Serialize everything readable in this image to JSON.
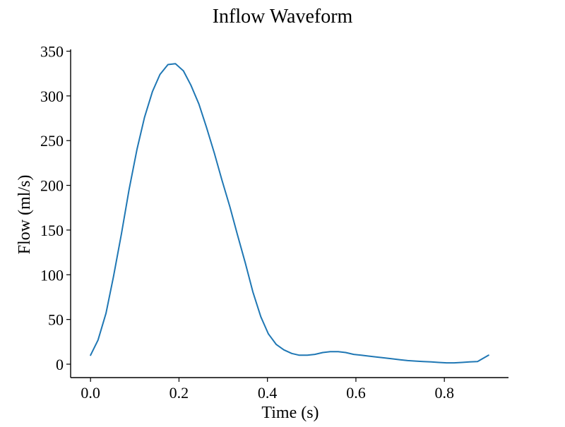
{
  "chart_data": {
    "type": "line",
    "title": "Inflow Waveform",
    "xlabel": "Time (s)",
    "ylabel": "Flow (ml/s)",
    "xlim": [
      -0.045,
      0.945
    ],
    "ylim": [
      -15,
      352
    ],
    "xticks": [
      0.0,
      0.2,
      0.4,
      0.6,
      0.8
    ],
    "xtick_labels": [
      "0.0",
      "0.2",
      "0.4",
      "0.6",
      "0.8"
    ],
    "yticks": [
      0,
      50,
      100,
      150,
      200,
      250,
      300,
      350
    ],
    "ytick_labels": [
      "0",
      "50",
      "100",
      "150",
      "200",
      "250",
      "300",
      "350"
    ],
    "grid": false,
    "legend": "none",
    "series": [
      {
        "color": "#1f77b4",
        "x": [
          0.0,
          0.017,
          0.035,
          0.052,
          0.07,
          0.087,
          0.105,
          0.122,
          0.14,
          0.157,
          0.175,
          0.192,
          0.21,
          0.227,
          0.245,
          0.262,
          0.28,
          0.297,
          0.315,
          0.332,
          0.35,
          0.367,
          0.385,
          0.402,
          0.42,
          0.437,
          0.455,
          0.472,
          0.49,
          0.507,
          0.525,
          0.542,
          0.56,
          0.577,
          0.595,
          0.612,
          0.63,
          0.647,
          0.665,
          0.682,
          0.7,
          0.717,
          0.735,
          0.752,
          0.77,
          0.787,
          0.805,
          0.822,
          0.84,
          0.857,
          0.875,
          0.9
        ],
        "y": [
          10,
          27,
          57,
          98,
          146,
          195,
          240,
          276,
          305,
          324,
          335,
          336,
          328,
          312,
          291,
          265,
          236,
          206,
          176,
          145,
          113,
          81,
          53,
          34,
          22,
          16,
          12,
          10,
          10,
          11,
          13,
          14,
          14,
          13,
          11,
          10,
          9,
          8,
          7,
          6,
          5,
          4,
          3.5,
          3,
          2.5,
          2,
          1.5,
          1.5,
          2,
          2.5,
          3,
          10
        ]
      }
    ]
  }
}
